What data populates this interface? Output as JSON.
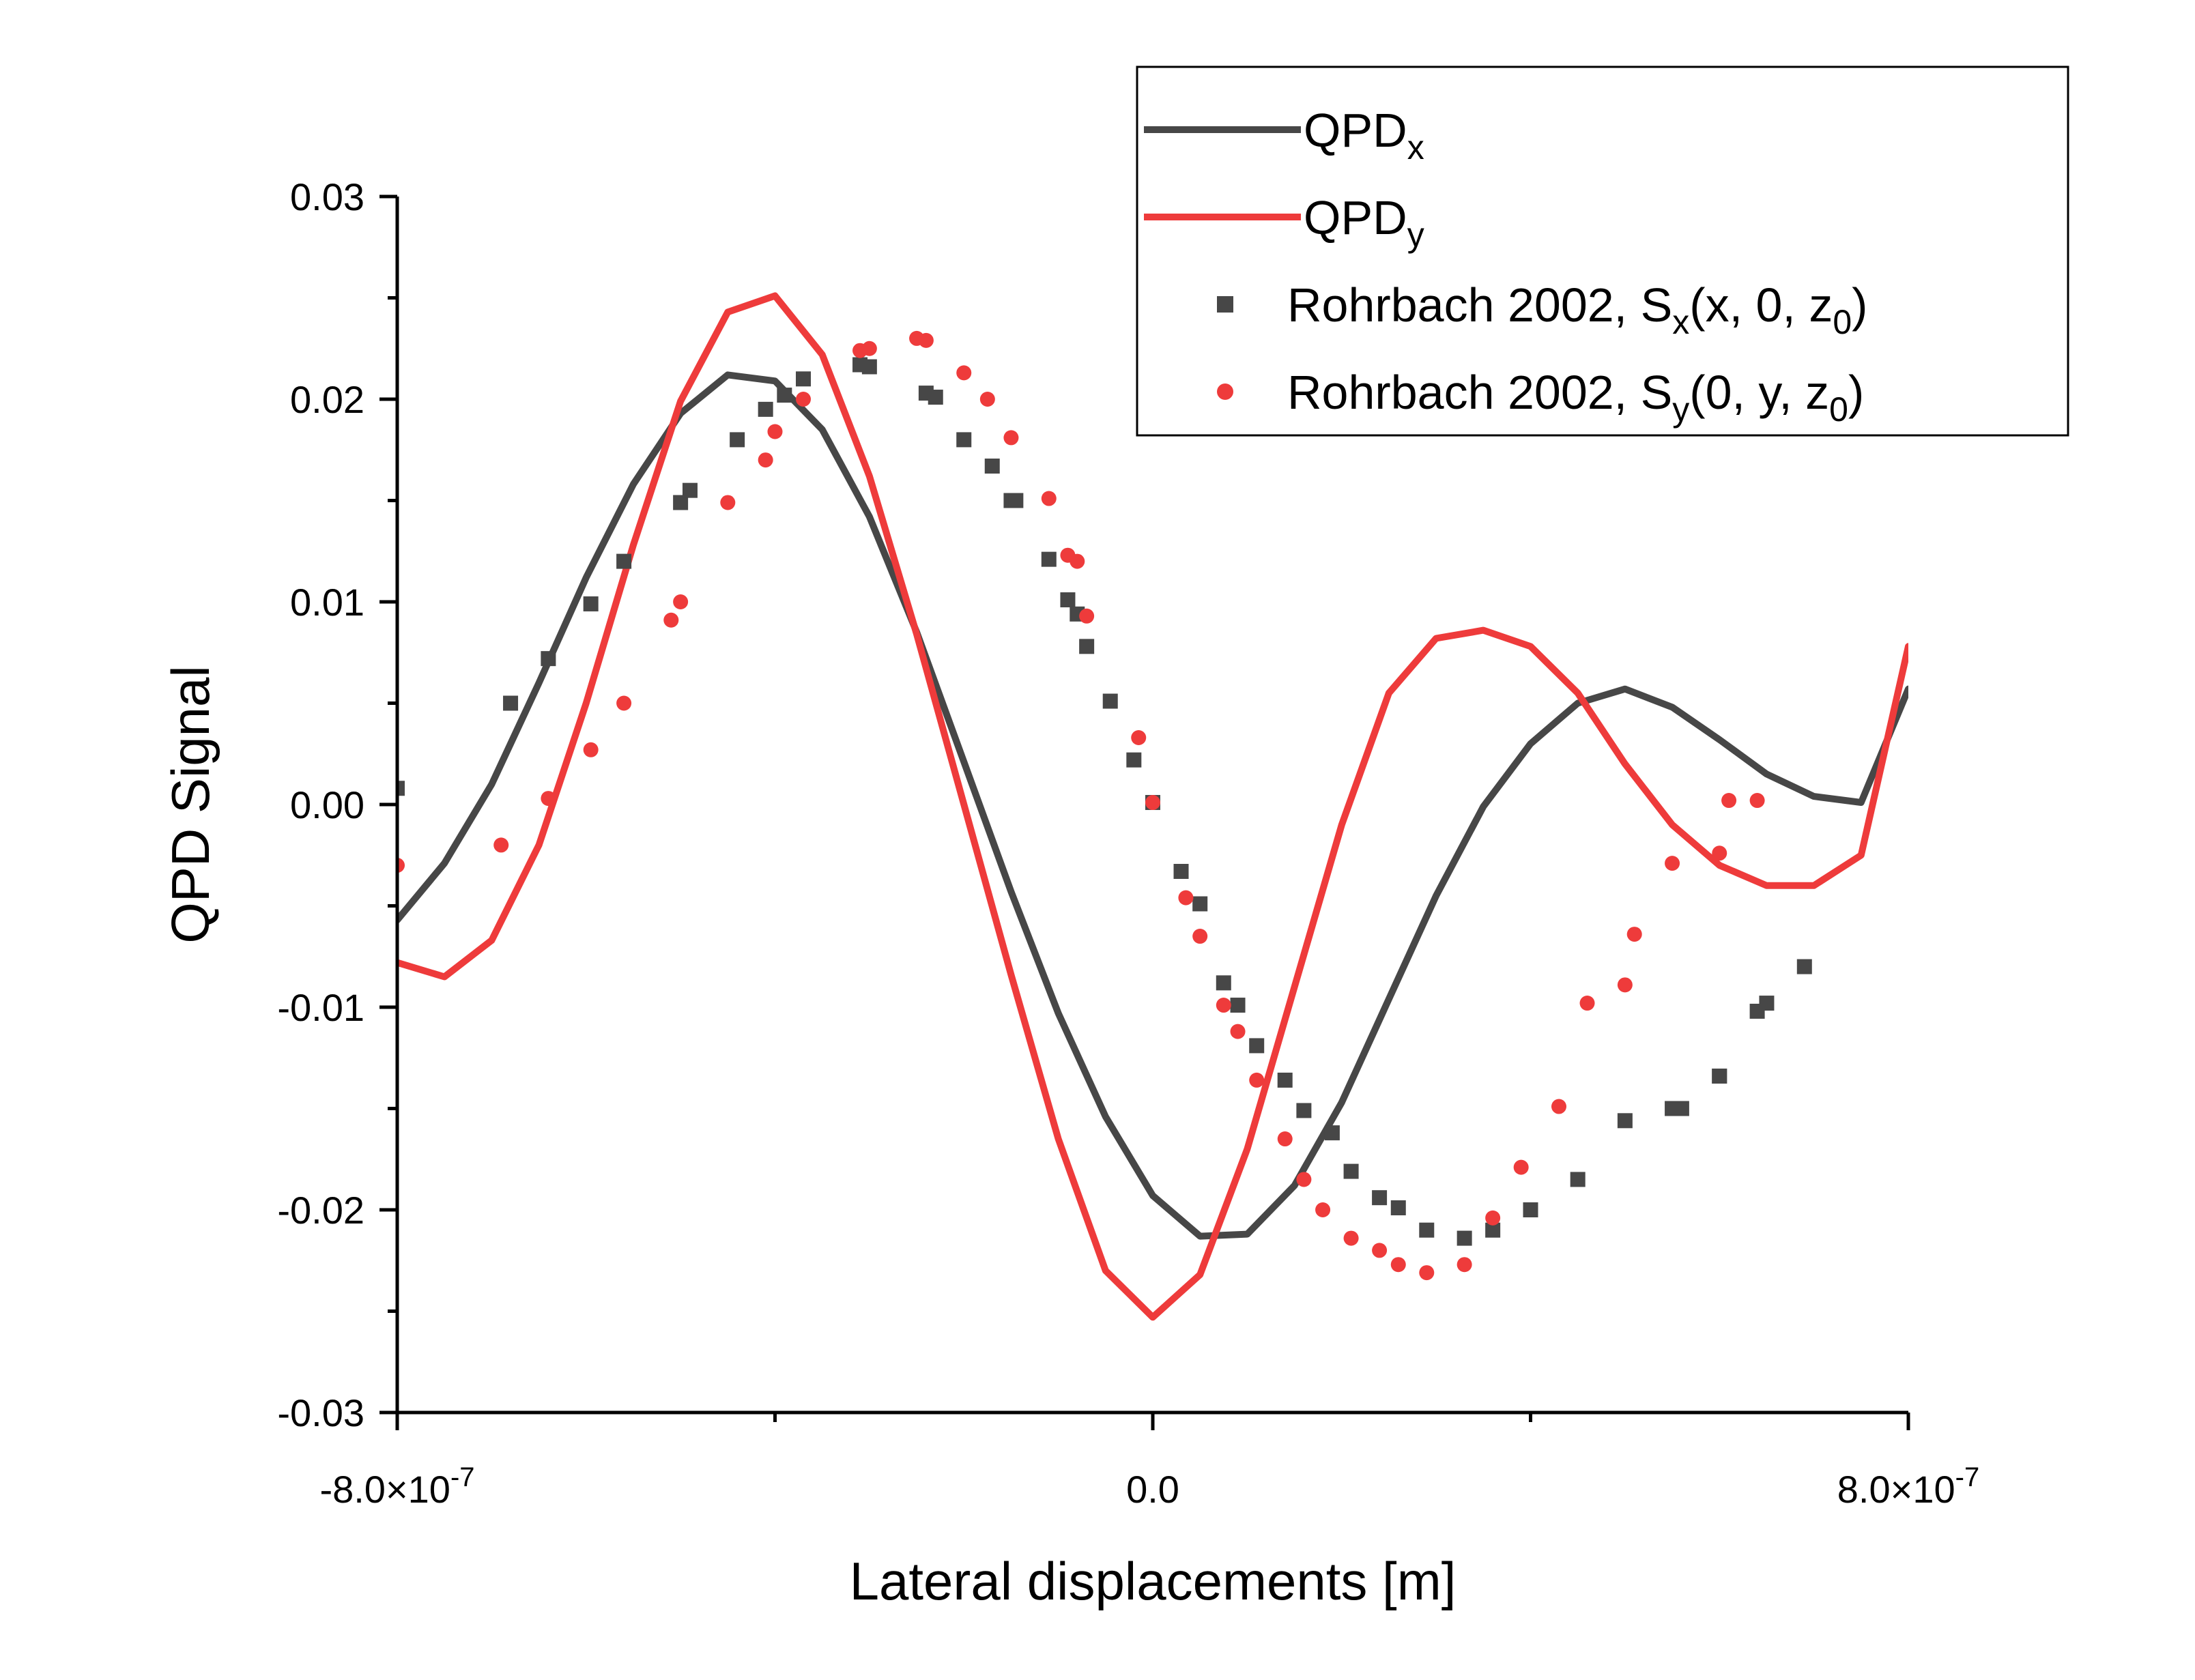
{
  "chart_data": {
    "type": "line",
    "xlabel": "Lateral displacements [m]",
    "ylabel": "QPD Signal",
    "xlim": [
      -8e-07,
      8e-07
    ],
    "ylim": [
      -0.03,
      0.03
    ],
    "x_ticks": [
      {
        "value": -8e-07,
        "mantissa": "-8.0×10",
        "exp": "-7"
      },
      {
        "value": 0,
        "mantissa": "0.0",
        "exp": ""
      },
      {
        "value": 8e-07,
        "mantissa": "8.0×10",
        "exp": "-7"
      }
    ],
    "y_ticks": [
      {
        "value": 0.03,
        "label": "0.03"
      },
      {
        "value": 0.02,
        "label": "0.02"
      },
      {
        "value": 0.01,
        "label": "0.01"
      },
      {
        "value": 0.0,
        "label": "0.00"
      },
      {
        "value": -0.01,
        "label": "-0.01"
      },
      {
        "value": -0.02,
        "label": "-0.02"
      },
      {
        "value": -0.03,
        "label": "-0.03"
      }
    ],
    "grid": false,
    "legend_placement": "top-right",
    "series": [
      {
        "name": "QPDx",
        "legend_main": "QPD",
        "legend_sub": "x",
        "legend_tail": "",
        "kind": "line",
        "color": "#474747",
        "x": [
          -8e-07,
          -7.5e-07,
          -7e-07,
          -6.5e-07,
          -6e-07,
          -5.5e-07,
          -5e-07,
          -4.5e-07,
          -4e-07,
          -3.5e-07,
          -3e-07,
          -2.5e-07,
          -2e-07,
          -1.5e-07,
          -1e-07,
          -5e-08,
          0,
          5e-08,
          1e-07,
          1.5e-07,
          2e-07,
          2.5e-07,
          3e-07,
          3.5e-07,
          4e-07,
          4.5e-07,
          5e-07,
          5.5e-07,
          6e-07,
          6.5e-07,
          7e-07,
          7.5e-07,
          8e-07
        ],
        "y": [
          -0.0057,
          -0.0029,
          0.001,
          0.006,
          0.0112,
          0.0158,
          0.0193,
          0.0212,
          0.0209,
          0.0185,
          0.0142,
          0.0085,
          0.0021,
          -0.0043,
          -0.0103,
          -0.0154,
          -0.0193,
          -0.0213,
          -0.0212,
          -0.0188,
          -0.0147,
          -0.0096,
          -0.0045,
          -0.0001,
          0.003,
          0.005,
          0.0057,
          0.0048,
          0.0032,
          0.0015,
          0.0004,
          0.0001,
          0.0057
        ]
      },
      {
        "name": "QPDy",
        "legend_main": "QPD",
        "legend_sub": "y",
        "legend_tail": "",
        "kind": "line",
        "color": "#ee3b3b",
        "x": [
          -8e-07,
          -7.5e-07,
          -7e-07,
          -6.5e-07,
          -6e-07,
          -5.5e-07,
          -5e-07,
          -4.5e-07,
          -4e-07,
          -3.5e-07,
          -3e-07,
          -2.5e-07,
          -2e-07,
          -1.5e-07,
          -1e-07,
          -5e-08,
          0,
          5e-08,
          1e-07,
          1.5e-07,
          2e-07,
          2.5e-07,
          3e-07,
          3.5e-07,
          4e-07,
          4.5e-07,
          5e-07,
          5.5e-07,
          6e-07,
          6.5e-07,
          7e-07,
          7.5e-07,
          8e-07
        ],
        "y": [
          -0.0078,
          -0.0085,
          -0.0067,
          -0.002,
          0.005,
          0.0128,
          0.0199,
          0.0243,
          0.0251,
          0.0222,
          0.0162,
          0.0084,
          0.0,
          -0.0084,
          -0.0165,
          -0.023,
          -0.0253,
          -0.0232,
          -0.017,
          -0.009,
          -0.001,
          0.0055,
          0.0082,
          0.0086,
          0.0078,
          0.0055,
          0.002,
          -0.001,
          -0.003,
          -0.004,
          -0.004,
          -0.0025,
          0.0078
        ]
      },
      {
        "name": "Rohrbach 2002, Sx(x, 0, z0)",
        "legend_main": "Rohrbach 2002, S",
        "legend_sub": "x",
        "legend_tail": "(x, 0, z0)",
        "kind": "scatter",
        "marker": "square",
        "color": "#474747",
        "x": [
          -8e-07,
          -6.8e-07,
          -6.4e-07,
          -5.95e-07,
          -5.6e-07,
          -5e-07,
          -4.9e-07,
          -4.4e-07,
          -4.1e-07,
          -3.9e-07,
          -3.7e-07,
          -3.1e-07,
          -3e-07,
          -2.4e-07,
          -2.3e-07,
          -2e-07,
          -1.7e-07,
          -1.5e-07,
          -1.45e-07,
          -1.1e-07,
          -9e-08,
          -8e-08,
          -7e-08,
          -4.5e-08,
          -2e-08,
          0,
          3e-08,
          5e-08,
          7.5e-08,
          9e-08,
          1.1e-07,
          1.4e-07,
          1.6e-07,
          1.9e-07,
          2.1e-07,
          2.4e-07,
          2.6e-07,
          2.9e-07,
          3.3e-07,
          3.6e-07,
          4e-07,
          4.5e-07,
          5e-07,
          5.5e-07,
          5.6e-07,
          6e-07,
          6e-07,
          6.4e-07,
          6.5e-07,
          6.9e-07
        ],
        "y": [
          0.0008,
          0.005,
          0.0072,
          0.0099,
          0.012,
          0.0149,
          0.0155,
          0.018,
          0.0195,
          0.0202,
          0.021,
          0.0217,
          0.0216,
          0.0203,
          0.0201,
          0.018,
          0.0167,
          0.015,
          0.015,
          0.0121,
          0.0101,
          0.0094,
          0.0078,
          0.0051,
          0.0022,
          0.0001,
          -0.0033,
          -0.0049,
          -0.0088,
          -0.0099,
          -0.0119,
          -0.0136,
          -0.0151,
          -0.0162,
          -0.0181,
          -0.0194,
          -0.0199,
          -0.021,
          -0.0214,
          -0.021,
          -0.02,
          -0.0185,
          -0.0156,
          -0.015,
          -0.015,
          -0.0134,
          -0.0134,
          -0.0102,
          -0.0098,
          -0.008
        ]
      },
      {
        "name": "Rohrbach 2002, Sy(0, y, z0)",
        "legend_main": "Rohrbach 2002, S",
        "legend_sub": "y",
        "legend_tail": "(0, y, z0)",
        "kind": "scatter",
        "marker": "circle",
        "color": "#ee3b3b",
        "x": [
          -8e-07,
          -6.9e-07,
          -6.4e-07,
          -5.95e-07,
          -5.6e-07,
          -5.1e-07,
          -5e-07,
          -4.5e-07,
          -4.1e-07,
          -4e-07,
          -3.7e-07,
          -3.1e-07,
          -3e-07,
          -2.5e-07,
          -2.4e-07,
          -2e-07,
          -1.75e-07,
          -1.5e-07,
          -1.1e-07,
          -9e-08,
          -8e-08,
          -7e-08,
          -1.5e-08,
          0,
          3.5e-08,
          5e-08,
          7.5e-08,
          9e-08,
          1.1e-07,
          1.4e-07,
          1.6e-07,
          1.8e-07,
          2.1e-07,
          2.4e-07,
          2.6e-07,
          2.9e-07,
          3.3e-07,
          3.6e-07,
          3.9e-07,
          4.3e-07,
          4.6e-07,
          5e-07,
          5.1e-07,
          5.5e-07,
          6e-07,
          6.1e-07,
          6.4e-07
        ],
        "y": [
          -0.003,
          -0.002,
          0.0003,
          0.0027,
          0.005,
          0.0091,
          0.01,
          0.0149,
          0.017,
          0.0184,
          0.02,
          0.0224,
          0.0225,
          0.023,
          0.0229,
          0.0213,
          0.02,
          0.0181,
          0.0151,
          0.0123,
          0.012,
          0.0093,
          0.0033,
          0.0001,
          -0.0046,
          -0.0065,
          -0.0099,
          -0.0112,
          -0.0136,
          -0.0165,
          -0.0185,
          -0.02,
          -0.0214,
          -0.022,
          -0.0227,
          -0.0231,
          -0.0227,
          -0.0204,
          -0.0179,
          -0.0149,
          -0.0098,
          -0.0089,
          -0.0064,
          -0.0029,
          -0.0024,
          0.0002,
          0.0002
        ]
      }
    ]
  }
}
